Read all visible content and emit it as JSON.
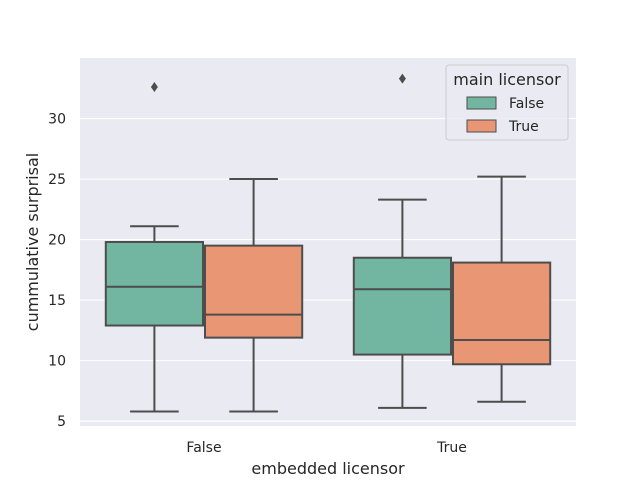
{
  "chart_data": {
    "type": "boxplot",
    "title": "",
    "xlabel": "embedded licensor",
    "ylabel": "cummulative surprisal",
    "categories": [
      "False",
      "True"
    ],
    "ylim": [
      4.6,
      35
    ],
    "yticks": [
      5,
      10,
      15,
      20,
      25,
      30
    ],
    "grid": true,
    "legend": {
      "title": "main licensor",
      "placement": "top-right"
    },
    "series": [
      {
        "name": "False",
        "color": "#72b6a1",
        "boxes": [
          {
            "whisker_low": 5.8,
            "q1": 12.9,
            "median": 16.1,
            "q3": 19.8,
            "whisker_high": 21.1,
            "outliers": [
              32.6
            ]
          },
          {
            "whisker_low": 6.1,
            "q1": 10.5,
            "median": 15.9,
            "q3": 18.5,
            "whisker_high": 23.3,
            "outliers": [
              33.3
            ]
          }
        ]
      },
      {
        "name": "True",
        "color": "#e99675",
        "boxes": [
          {
            "whisker_low": 5.8,
            "q1": 11.9,
            "median": 13.8,
            "q3": 19.5,
            "whisker_high": 25.0,
            "outliers": []
          },
          {
            "whisker_low": 6.6,
            "q1": 9.7,
            "median": 11.7,
            "q3": 18.1,
            "whisker_high": 25.2,
            "outliers": []
          }
        ]
      }
    ]
  }
}
